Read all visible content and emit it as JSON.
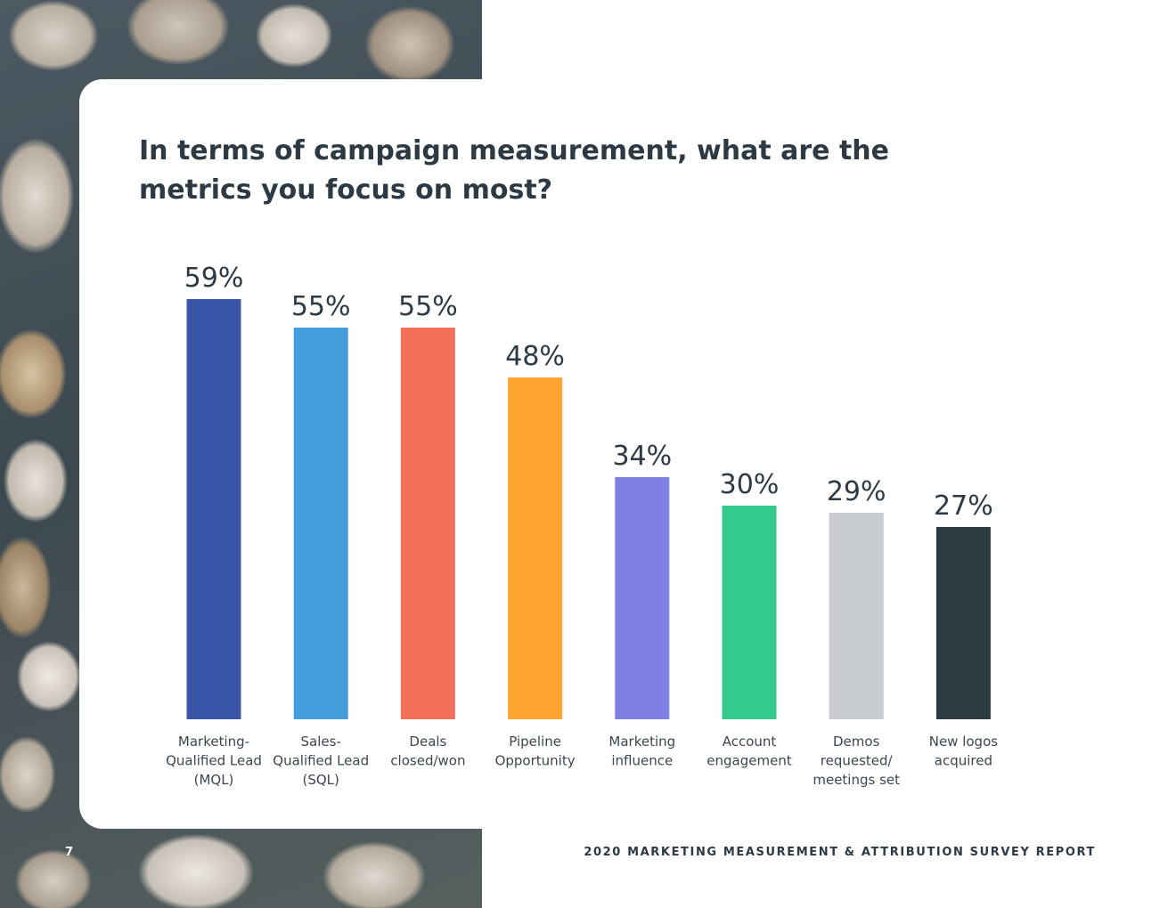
{
  "page": {
    "number": "7",
    "footer": "2020 MARKETING MEASUREMENT & ATTRIBUTION SURVEY REPORT"
  },
  "chart_data": {
    "type": "bar",
    "title": "In terms of campaign measurement, what are the metrics you focus on most?",
    "categories": [
      [
        "Marketing-",
        "Qualified Lead",
        "(MQL)"
      ],
      [
        "Sales-",
        "Qualified Lead",
        "(SQL)"
      ],
      [
        "Deals",
        "closed/won"
      ],
      [
        "Pipeline",
        "Opportunity"
      ],
      [
        "Marketing",
        "influence"
      ],
      [
        "Account",
        "engagement"
      ],
      [
        "Demos",
        "requested/",
        "meetings set"
      ],
      [
        "New logos",
        "acquired"
      ]
    ],
    "values": [
      59,
      55,
      55,
      48,
      34,
      30,
      29,
      27
    ],
    "value_labels": [
      "59%",
      "55%",
      "55%",
      "48%",
      "34%",
      "30%",
      "29%",
      "27%"
    ],
    "colors": [
      "#3a55a8",
      "#459edb",
      "#f27057",
      "#fea32d",
      "#7f80e1",
      "#34c98d",
      "#c8cbd0",
      "#2e3a42"
    ],
    "ylim": [
      0,
      59
    ],
    "grid": false,
    "xlabel": "",
    "ylabel": ""
  }
}
